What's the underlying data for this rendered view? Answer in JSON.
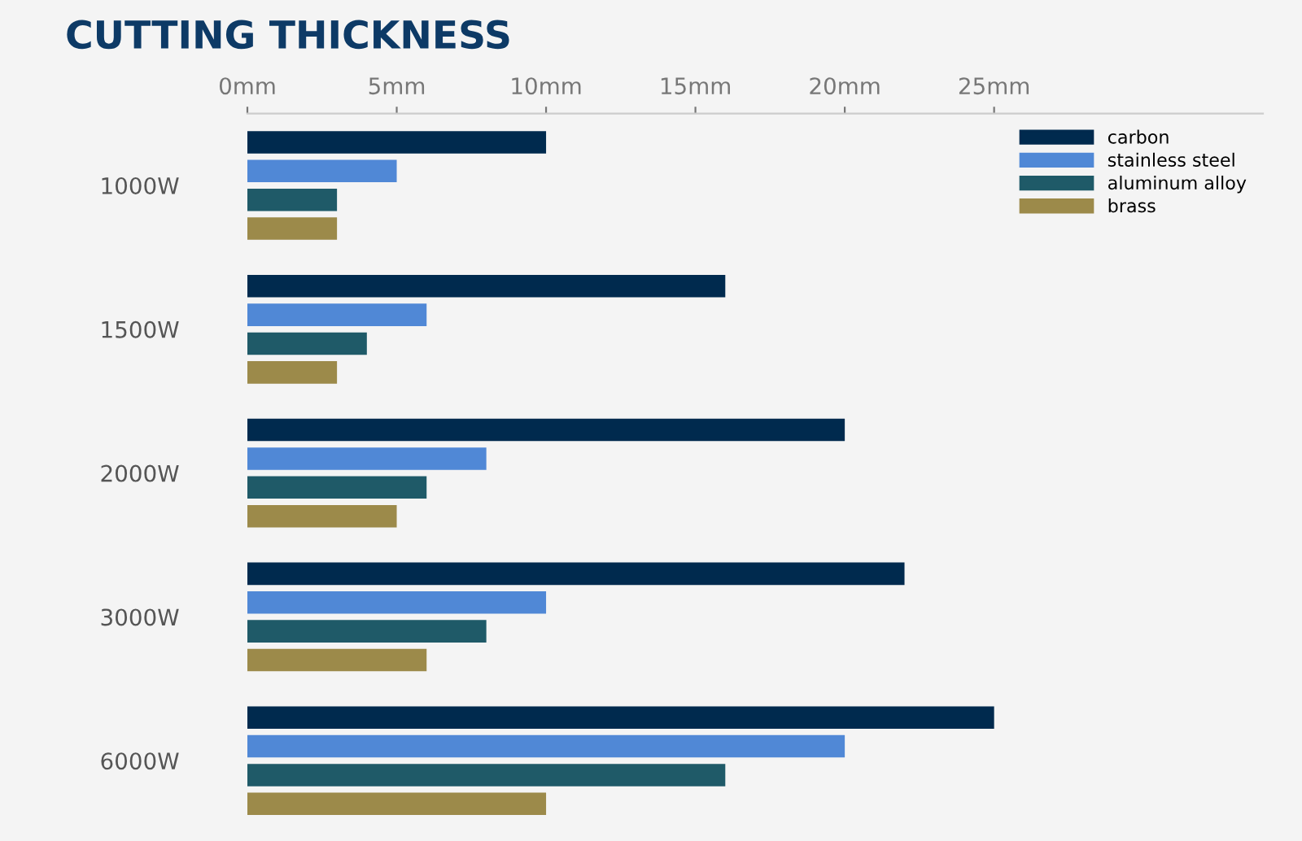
{
  "chart_data": {
    "type": "bar",
    "orientation": "horizontal",
    "title": "CUTTING THICKNESS",
    "categories": [
      "1000W",
      "1500W",
      "2000W",
      "3000W",
      "6000W"
    ],
    "series": [
      {
        "name": "carbon",
        "color": "#002a4e",
        "values": [
          10,
          16,
          20,
          22,
          25
        ]
      },
      {
        "name": "stainless steel",
        "color": "#5088d6",
        "values": [
          5,
          6,
          8,
          10,
          20
        ]
      },
      {
        "name": "aluminum alloy",
        "color": "#1f5a68",
        "values": [
          3,
          4,
          6,
          8,
          16
        ]
      },
      {
        "name": "brass",
        "color": "#9c8a4a",
        "values": [
          3,
          3,
          5,
          6,
          10
        ]
      }
    ],
    "xlim": [
      0,
      34
    ],
    "xticks": [
      {
        "value": 0,
        "label": "0mm"
      },
      {
        "value": 5,
        "label": "5mm"
      },
      {
        "value": 10,
        "label": "10mm"
      },
      {
        "value": 15,
        "label": "15mm"
      },
      {
        "value": 20,
        "label": "20mm"
      },
      {
        "value": 25,
        "label": "25mm"
      }
    ],
    "grid": false,
    "legend": "top right"
  }
}
